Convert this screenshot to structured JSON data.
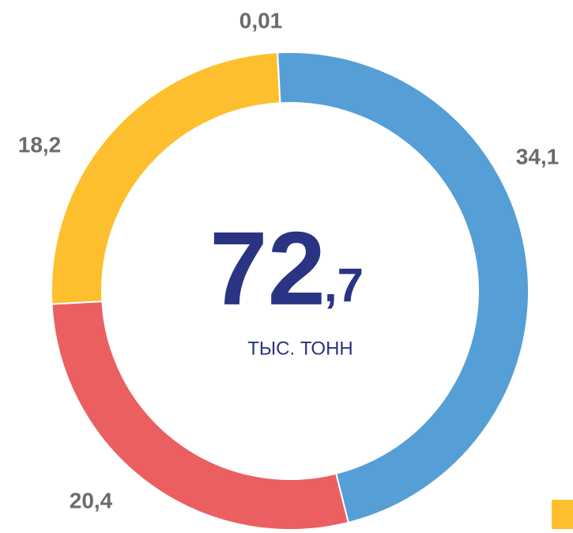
{
  "chart_data": {
    "type": "donut",
    "categories": [
      null,
      null,
      null,
      null
    ],
    "values": [
      34.1,
      20.4,
      18.2,
      0.01
    ],
    "value_labels": [
      "34,1",
      "20,4",
      "18,2",
      "0,01"
    ],
    "colors": [
      "#559fd6",
      "#eb5f61",
      "#fdbf2e",
      "#7030a0"
    ],
    "center_main": "72",
    "center_fraction": ",7",
    "center_unit": "ТЫС. ТОНН"
  }
}
